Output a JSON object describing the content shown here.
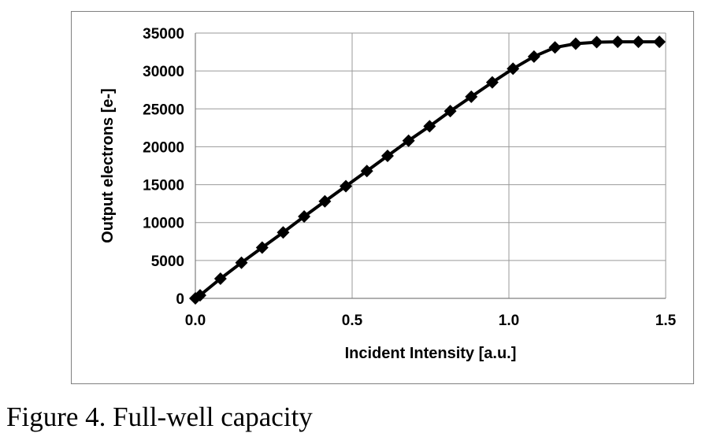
{
  "caption": "Figure 4. Full-well capacity",
  "chart_data": {
    "type": "line",
    "xlabel": "Incident Intensity [a.u.]",
    "ylabel": "Output electrons [e-]",
    "xlim": [
      0,
      1.5
    ],
    "ylim": [
      0,
      35000
    ],
    "xticks": [
      "0.0",
      "0.5",
      "1.0",
      "1.5"
    ],
    "yticks": [
      "0",
      "5000",
      "10000",
      "15000",
      "20000",
      "25000",
      "30000",
      "35000"
    ],
    "grid": true,
    "marker": "diamond",
    "line_color": "#000000",
    "series": [
      {
        "x": [
          0.0,
          0.015,
          0.08,
          0.147,
          0.213,
          0.28,
          0.347,
          0.413,
          0.48,
          0.547,
          0.613,
          0.68,
          0.747,
          0.813,
          0.88,
          0.947,
          1.013,
          1.08,
          1.147,
          1.213,
          1.28,
          1.347,
          1.413,
          1.48
        ],
        "y": [
          0,
          400,
          2600,
          4700,
          6700,
          8700,
          10800,
          12800,
          14800,
          16800,
          18800,
          20800,
          22700,
          24700,
          26600,
          28500,
          30300,
          31900,
          33100,
          33600,
          33800,
          33850,
          33850,
          33850
        ]
      }
    ]
  }
}
